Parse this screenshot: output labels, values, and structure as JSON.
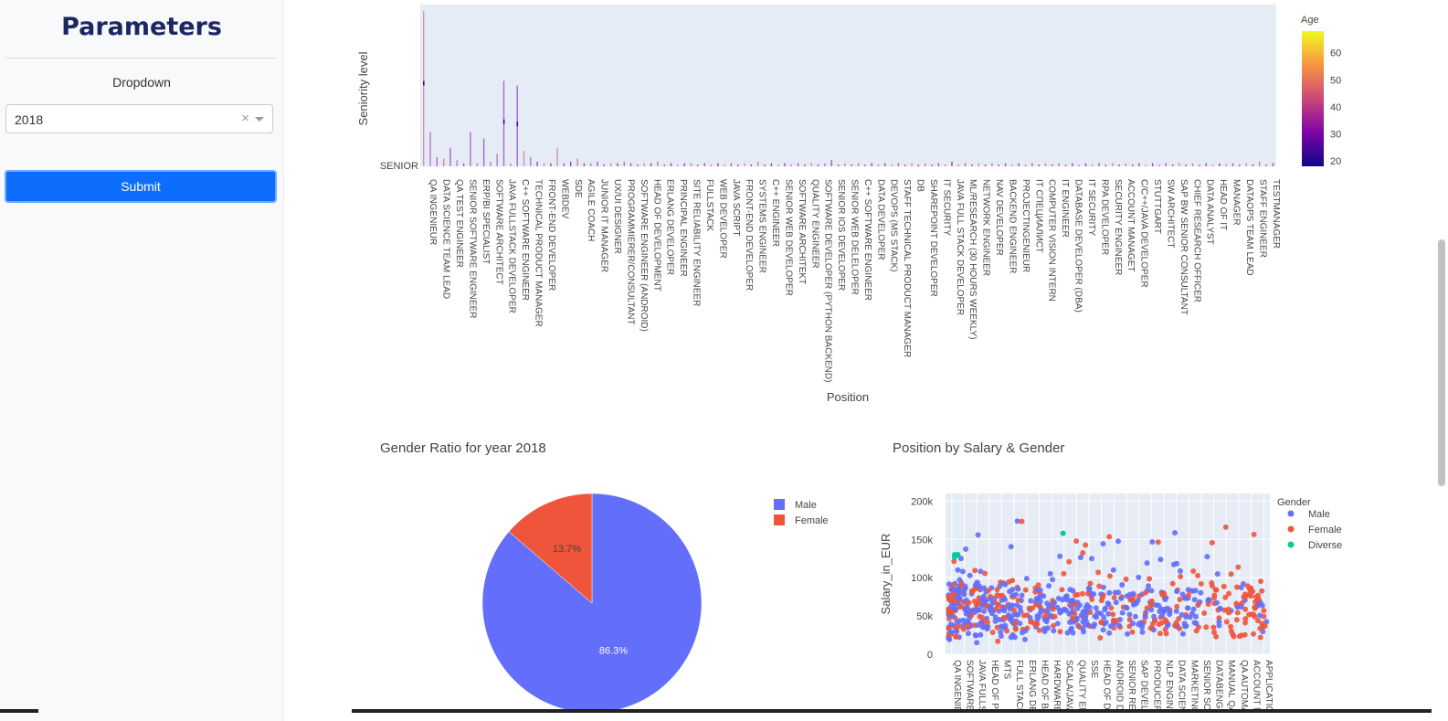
{
  "sidebar": {
    "title": "Parameters",
    "dropdown_label": "Dropdown",
    "dropdown_value": "2018",
    "clear_glyph": "×",
    "submit_label": "Submit"
  },
  "chart_data": [
    {
      "type": "scatter",
      "title": "",
      "xlabel": "Position",
      "ylabel": "Seniority level",
      "y_categories": [
        "SENIOR"
      ],
      "colorbar": {
        "title": "Age",
        "ticks": [
          20,
          30,
          40,
          50,
          60
        ],
        "colorscale": "plasma"
      },
      "categories": [
        "QA INGENIEUR",
        "DATA SCIENCE TEAM LEAD",
        "QA TEST ENGINEER",
        "SENIOR SOFTWARE ENGINEER",
        "ERP/BI SPECIALIST",
        "SOFTWARE ARCHITECT",
        "JAVA FULLSTACK DEVELOPER",
        "C++ SOFTWARE ENGINEER",
        "TECHNICAL PRODUCT MANAGER",
        "FRONT-END DEVELOPER",
        "WEBDEV",
        "SDE",
        "AGILE COACH",
        "JUNIOR IT MANAGER",
        "UX/UI DESIGNER",
        "PROGRAMMIERER/CONSULTANT",
        "SOFTWARE ENGINEER (ANDROID)",
        "HEAD OF DEVELOPMENT",
        "ERLANG DEVELOPER",
        "PRINCIPAL ENGINEER",
        "SITE RELIABILITY ENGINEER",
        "FULLSTACK",
        "WEB DEVELOPER",
        "JAVA SCRIPT",
        "FRONT-END DEVELOPER",
        "SYSTEMS ENGINEER",
        "C++ ENGINEER",
        "SENIOR WEB DEVELOPER",
        "SOFTWARE ARCHITEKT",
        "QUALITY ENGINEER",
        "SOFTWARE DEVELOPER (PYTHON BACKEND)",
        "SENIOR IOS DEVELOPER",
        "SENIOR WEB DELELOPER",
        "C++ SOFTWARE ENGINEER",
        "DATA DEVELOPER",
        "DEVOPS (MS STACK)",
        "STAFF TECHNICAL PRODUCT MANAGER",
        "DB",
        "SHAREPOINT DEVELOPER",
        "IT SECURITY",
        "JAVA FULL STACK DEVELOPER",
        "ML/RESEARCH (30 HOURS WEEKLY)",
        "NETWORK ENGINEER",
        "NAV DEVELOPER",
        "BACKEND ENGINEER",
        "PROJECTINGENIEUR",
        "IT СПЕЦИАЛИСТ",
        "COMPUTER VISION INTERN",
        "IT ENGINEER",
        "DATABASE DEVELOPER (DBA)",
        "IT SECURITY",
        "RPA DEVELOPER",
        "SECURITY ENGINEER",
        "ACCOUNT MANAGET",
        "C/C++/JAVA DEVELOPER",
        "STUTTGART",
        "SW ARCHITECT",
        "SAP BW SENIOR CONSULTANT",
        "CHIEF RESEARCH OFFICER",
        "DATA ANALYST",
        "HEAD OF IT",
        "MANAGER",
        "DATAOPS TEAM LEAD",
        "STAFF ENGINEER",
        "TESTMANAGER"
      ],
      "bar_heights": [
        1.0,
        0.22,
        0.06,
        0.05,
        0.12,
        0.04,
        0.02,
        0.22,
        0.02,
        0.18,
        0.03,
        0.08,
        0.55,
        0.02,
        0.52,
        0.1,
        0.06,
        0.03,
        0.02,
        0.02,
        0.12,
        0.02,
        0.03,
        0.05,
        0.02,
        0.02,
        0.03,
        0.01,
        0.02,
        0.02,
        0.03,
        0.02,
        0.01,
        0.02,
        0.02,
        0.03,
        0.01,
        0.02,
        0.01,
        0.02,
        0.02,
        0.01,
        0.02,
        0.01,
        0.02,
        0.01,
        0.02,
        0.01,
        0.02,
        0.01,
        0.03,
        0.01,
        0.02,
        0.01,
        0.02,
        0.01,
        0.02,
        0.01,
        0.02,
        0.01,
        0.02,
        0.04,
        0.01,
        0.02,
        0.01,
        0.02,
        0.01,
        0.02,
        0.01,
        0.02,
        0.01,
        0.02,
        0.01,
        0.02,
        0.01,
        0.02,
        0.01,
        0.02,
        0.01,
        0.03,
        0.01,
        0.02,
        0.01,
        0.02,
        0.01,
        0.02,
        0.01,
        0.02,
        0.01,
        0.02,
        0.01,
        0.02,
        0.01,
        0.02,
        0.01,
        0.02,
        0.01,
        0.02,
        0.01,
        0.02,
        0.01,
        0.02,
        0.01,
        0.02,
        0.01,
        0.02,
        0.01,
        0.02,
        0.01,
        0.02,
        0.01,
        0.02,
        0.01,
        0.02,
        0.01,
        0.02,
        0.01,
        0.02,
        0.01,
        0.02,
        0.01,
        0.02,
        0.01,
        0.02,
        0.01,
        0.03,
        0.01,
        0.02
      ]
    },
    {
      "type": "pie",
      "title": "Gender Ratio for year 2018",
      "slices": [
        {
          "name": "Male",
          "value": 86.3,
          "label": "86.3%",
          "color": "#636efa"
        },
        {
          "name": "Female",
          "value": 13.7,
          "label": "13.7%",
          "color": "#ef553b"
        }
      ],
      "legend": [
        "Male",
        "Female"
      ],
      "legend_placement": "right"
    },
    {
      "type": "scatter",
      "title": "Position by Salary & Gender",
      "xlabel": "",
      "ylabel": "Salary_in_EUR",
      "ylim": [
        0,
        210000
      ],
      "yticks": [
        0,
        50000,
        100000,
        150000,
        200000
      ],
      "ytick_labels": [
        "0",
        "50k",
        "100k",
        "150k",
        "200k"
      ],
      "legend_title": "Gender",
      "series": [
        {
          "name": "Male",
          "color": "#636efa"
        },
        {
          "name": "Female",
          "color": "#ef553b"
        },
        {
          "name": "Diverse",
          "color": "#00cc96"
        }
      ],
      "categories": [
        "QA INGENIEUR",
        "SOFTWARE",
        "JAVA FULLS",
        "HEAD OF PR",
        "MTS",
        "FULL STACK",
        "ERLANG DE",
        "HEAD OF BI",
        "HARDWARE",
        "SCALA/JAVA",
        "QUALITY EN",
        "SSE",
        "HEAD OF DA",
        "ANDROID D",
        "SENIOR RES",
        "SAP DEVELO",
        "PRODUCER",
        "NLP ENGINE",
        "DATA SCIEN",
        "MARKETING",
        "SENIOR SCR",
        "DATABENGI",
        "MANUAL QA",
        "QA AUTOMA",
        "ACCOUNT M",
        "APPLICATIO"
      ]
    }
  ]
}
